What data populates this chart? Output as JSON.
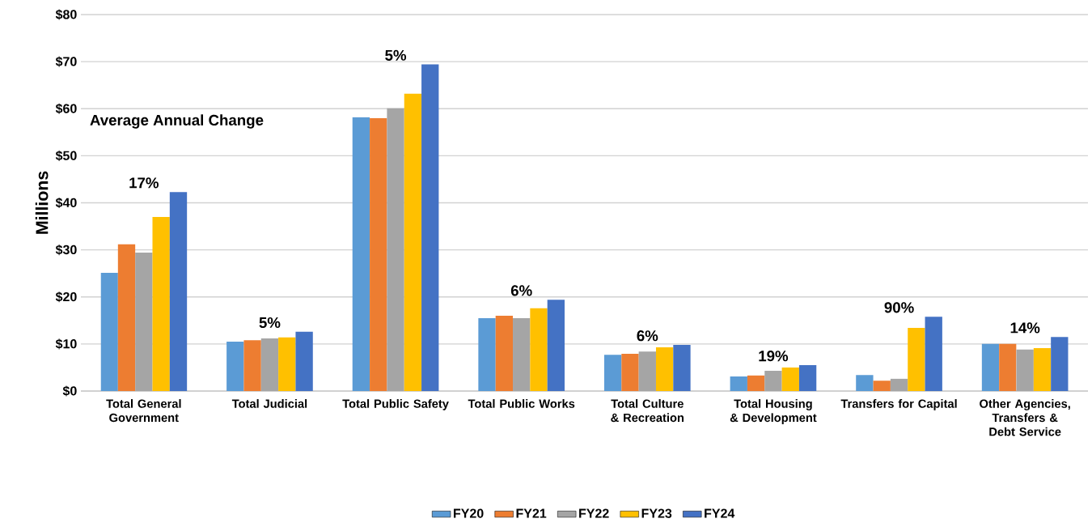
{
  "chart_data": {
    "type": "bar",
    "ylabel": "Millions",
    "categories": [
      "Total General Government",
      "Total Judicial",
      "Total Public Safety",
      "Total Public Works",
      "Total Culture & Recreation",
      "Total Housing & Development",
      "Transfers for Capital",
      "Other Agencies, Transfers & Debt Service"
    ],
    "series": [
      {
        "name": "FY20",
        "color": "#5b9bd5",
        "values": [
          25.1,
          10.5,
          58.2,
          15.5,
          7.7,
          3.1,
          3.4,
          10.0
        ]
      },
      {
        "name": "FY21",
        "color": "#ed7d31",
        "values": [
          31.2,
          10.8,
          58.0,
          16.0,
          7.9,
          3.3,
          2.2,
          10.0
        ]
      },
      {
        "name": "FY22",
        "color": "#a5a5a5",
        "values": [
          29.4,
          11.2,
          60.1,
          15.5,
          8.4,
          4.3,
          2.6,
          8.8
        ]
      },
      {
        "name": "FY23",
        "color": "#ffc000",
        "values": [
          37.0,
          11.4,
          63.2,
          17.6,
          9.3,
          5.0,
          13.4,
          9.1
        ]
      },
      {
        "name": "FY24",
        "color": "#4472c4",
        "values": [
          42.3,
          12.6,
          69.4,
          19.4,
          9.8,
          5.5,
          15.8,
          11.5
        ]
      }
    ],
    "ylim": [
      0,
      80
    ],
    "yticks": [
      {
        "value": 0,
        "label": "$0"
      },
      {
        "value": 10,
        "label": "$10"
      },
      {
        "value": 20,
        "label": "$20"
      },
      {
        "value": 30,
        "label": "$30"
      },
      {
        "value": 40,
        "label": "$40"
      },
      {
        "value": 50,
        "label": "$50"
      },
      {
        "value": 60,
        "label": "$60"
      },
      {
        "value": 70,
        "label": "$70"
      },
      {
        "value": 80,
        "label": "$80"
      }
    ],
    "grid": "y",
    "legend": "bottom",
    "annotations": [
      "Average Annual Change",
      "17%",
      "5%",
      "5%",
      "6%",
      "6%",
      "19%",
      "90%",
      "14%"
    ]
  }
}
